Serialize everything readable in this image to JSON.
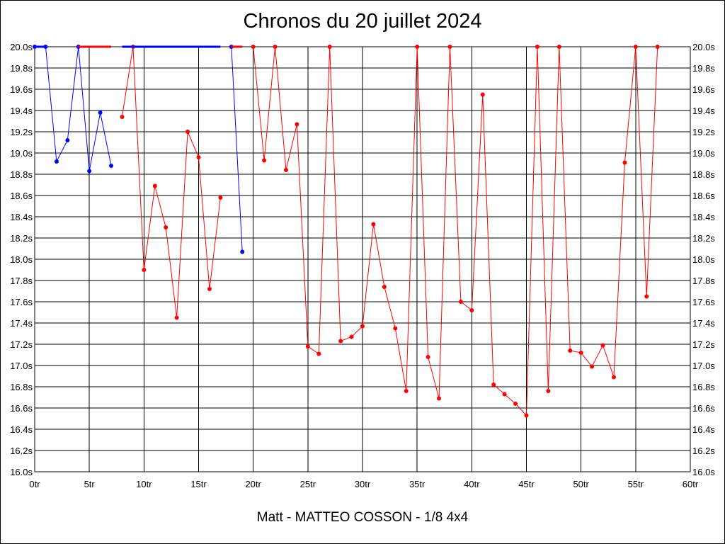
{
  "chart_data": {
    "type": "line",
    "title": "Chronos du 20 juillet 2024",
    "subtitle": "Matt - MATTEO COSSON - 1/8 4x4",
    "xlabel": "",
    "ylabel": "",
    "xlim": [
      0,
      60
    ],
    "ylim": [
      16.0,
      20.0
    ],
    "grid": true,
    "x_tick_labels": [
      "0tr",
      "5tr",
      "10tr",
      "15tr",
      "20tr",
      "25tr",
      "30tr",
      "35tr",
      "40tr",
      "45tr",
      "50tr",
      "55tr",
      "60tr"
    ],
    "y_tick_labels": [
      "16.0s",
      "16.2s",
      "16.4s",
      "16.6s",
      "16.8s",
      "17.0s",
      "17.2s",
      "17.4s",
      "17.6s",
      "17.8s",
      "18.0s",
      "18.2s",
      "18.4s",
      "18.6s",
      "18.8s",
      "19.0s",
      "19.2s",
      "19.4s",
      "19.6s",
      "19.8s",
      "20.0s"
    ],
    "series": [
      {
        "color": "#0000ff",
        "segments": [
          [
            [
              0,
              20.0
            ],
            [
              1,
              20.0
            ],
            [
              2,
              18.92
            ],
            [
              3,
              19.12
            ],
            [
              4,
              20.0
            ],
            [
              5,
              18.83
            ],
            [
              6,
              19.38
            ],
            [
              7,
              18.88
            ]
          ],
          [
            [
              18,
              20.0
            ],
            [
              19,
              18.07
            ]
          ]
        ]
      },
      {
        "color": "#ff0000",
        "segments": [
          [
            [
              8,
              19.34
            ],
            [
              9,
              20.0
            ],
            [
              10,
              17.9
            ],
            [
              11,
              18.69
            ],
            [
              12,
              18.3
            ],
            [
              13,
              17.45
            ],
            [
              14,
              19.2
            ],
            [
              15,
              18.96
            ],
            [
              16,
              17.72
            ],
            [
              17,
              18.58
            ]
          ],
          [
            [
              20,
              20.0
            ],
            [
              21,
              18.93
            ],
            [
              22,
              20.0
            ],
            [
              23,
              18.84
            ],
            [
              24,
              19.27
            ],
            [
              25,
              17.18
            ],
            [
              26,
              17.11
            ],
            [
              27,
              20.0
            ],
            [
              28,
              17.23
            ],
            [
              29,
              17.27
            ],
            [
              30,
              17.37
            ],
            [
              31,
              18.33
            ],
            [
              32,
              17.74
            ],
            [
              33,
              17.35
            ],
            [
              34,
              16.76
            ],
            [
              35,
              20.0
            ],
            [
              36,
              17.08
            ],
            [
              37,
              16.69
            ],
            [
              38,
              20.0
            ],
            [
              39,
              17.6
            ],
            [
              40,
              17.52
            ],
            [
              41,
              19.55
            ],
            [
              42,
              16.82
            ],
            [
              43,
              16.73
            ],
            [
              44,
              16.64
            ],
            [
              45,
              16.53
            ],
            [
              46,
              20.0
            ],
            [
              47,
              16.76
            ],
            [
              48,
              20.0
            ],
            [
              49,
              17.14
            ],
            [
              50,
              17.12
            ],
            [
              51,
              16.99
            ],
            [
              52,
              17.19
            ],
            [
              53,
              16.89
            ],
            [
              54,
              18.91
            ],
            [
              55,
              20.0
            ],
            [
              56,
              17.65
            ],
            [
              57,
              20.0
            ]
          ]
        ]
      }
    ],
    "legend": "none"
  }
}
